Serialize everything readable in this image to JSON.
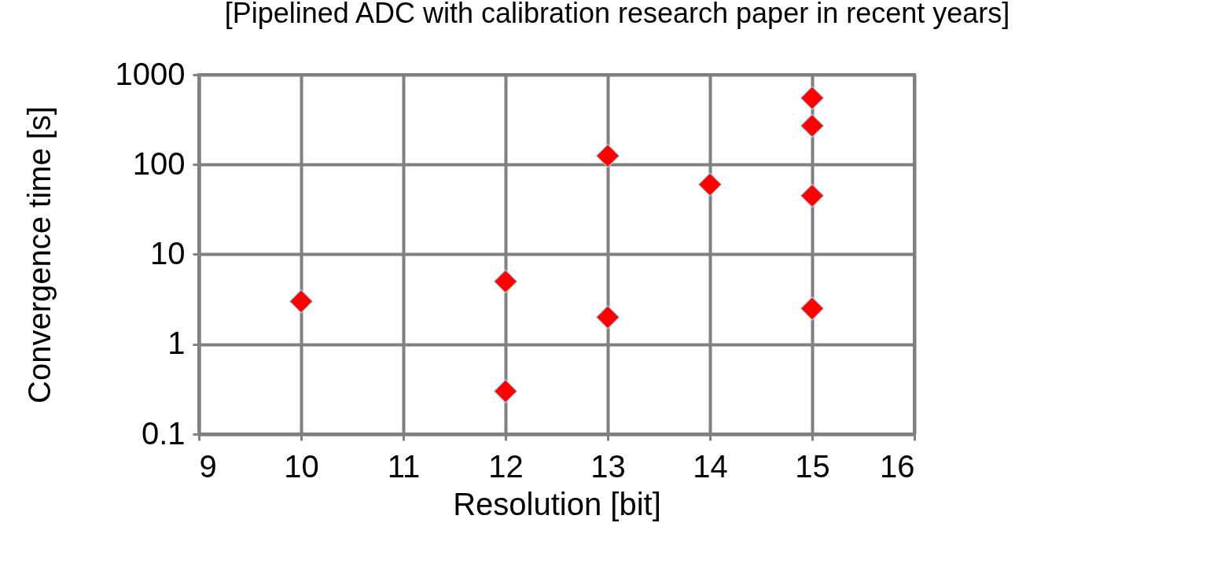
{
  "chart_data": {
    "type": "scatter",
    "title": "[Pipelined ADC with calibration research paper in recent years]",
    "xlabel": "Resolution [bit]",
    "ylabel": "Convergence time [s]",
    "x": [
      10,
      12,
      12,
      13,
      13,
      14,
      15,
      15,
      15,
      15
    ],
    "series": [
      {
        "color": "#ff0000",
        "values": [
          3,
          5,
          0.3,
          125,
          2,
          60,
          550,
          270,
          45,
          2.5
        ]
      }
    ],
    "xlim": [
      9,
      16
    ],
    "xticks": [
      9,
      10,
      11,
      12,
      13,
      14,
      15,
      16
    ],
    "ylim": [
      0.1,
      1000
    ],
    "yticks": [
      0.1,
      1,
      10,
      100,
      1000
    ],
    "log": "y",
    "grid": true,
    "legend": false,
    "marker": "diamond"
  }
}
